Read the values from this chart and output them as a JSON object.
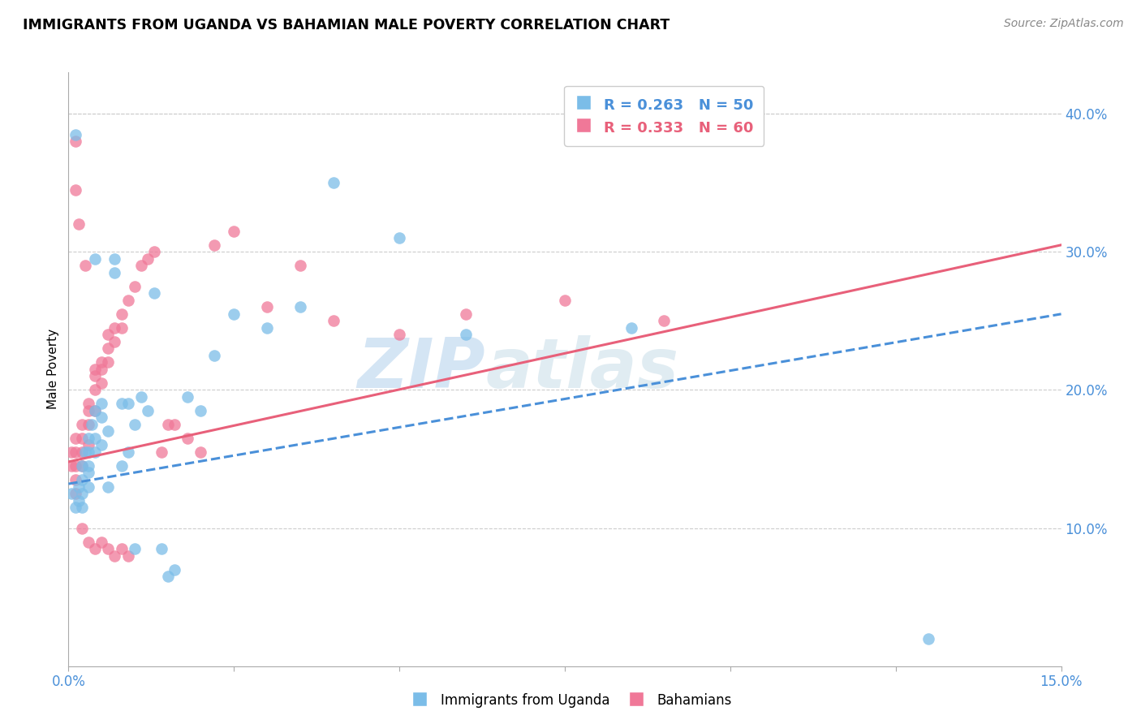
{
  "title": "IMMIGRANTS FROM UGANDA VS BAHAMIAN MALE POVERTY CORRELATION CHART",
  "source": "Source: ZipAtlas.com",
  "ylabel": "Male Poverty",
  "right_yticks": [
    "40.0%",
    "30.0%",
    "20.0%",
    "10.0%"
  ],
  "right_ytick_vals": [
    0.4,
    0.3,
    0.2,
    0.1
  ],
  "xlim": [
    0.0,
    0.15
  ],
  "ylim": [
    0.0,
    0.43
  ],
  "blue_color": "#7bbde8",
  "pink_color": "#f07898",
  "blue_line_color": "#4a90d9",
  "pink_line_color": "#e8607a",
  "watermark_zip": "ZIP",
  "watermark_atlas": "atlas",
  "blue_scatter_x": [
    0.0005,
    0.001,
    0.001,
    0.0015,
    0.0015,
    0.002,
    0.002,
    0.002,
    0.002,
    0.0025,
    0.003,
    0.003,
    0.003,
    0.003,
    0.003,
    0.0035,
    0.004,
    0.004,
    0.004,
    0.004,
    0.005,
    0.005,
    0.005,
    0.006,
    0.006,
    0.007,
    0.007,
    0.008,
    0.008,
    0.009,
    0.009,
    0.01,
    0.01,
    0.011,
    0.012,
    0.013,
    0.014,
    0.015,
    0.016,
    0.018,
    0.02,
    0.022,
    0.025,
    0.03,
    0.035,
    0.04,
    0.05,
    0.06,
    0.085,
    0.13
  ],
  "blue_scatter_y": [
    0.125,
    0.115,
    0.385,
    0.12,
    0.13,
    0.145,
    0.135,
    0.125,
    0.115,
    0.155,
    0.165,
    0.155,
    0.145,
    0.14,
    0.13,
    0.175,
    0.295,
    0.185,
    0.165,
    0.155,
    0.19,
    0.18,
    0.16,
    0.17,
    0.13,
    0.295,
    0.285,
    0.19,
    0.145,
    0.155,
    0.19,
    0.175,
    0.085,
    0.195,
    0.185,
    0.27,
    0.085,
    0.065,
    0.07,
    0.195,
    0.185,
    0.225,
    0.255,
    0.245,
    0.26,
    0.35,
    0.31,
    0.24,
    0.245,
    0.02
  ],
  "pink_scatter_x": [
    0.0005,
    0.0005,
    0.001,
    0.001,
    0.001,
    0.001,
    0.001,
    0.0015,
    0.002,
    0.002,
    0.002,
    0.002,
    0.0025,
    0.003,
    0.003,
    0.003,
    0.003,
    0.004,
    0.004,
    0.004,
    0.004,
    0.005,
    0.005,
    0.005,
    0.006,
    0.006,
    0.006,
    0.007,
    0.007,
    0.008,
    0.008,
    0.009,
    0.01,
    0.011,
    0.012,
    0.013,
    0.014,
    0.015,
    0.016,
    0.018,
    0.02,
    0.022,
    0.025,
    0.03,
    0.035,
    0.04,
    0.05,
    0.06,
    0.075,
    0.09,
    0.001,
    0.001,
    0.002,
    0.003,
    0.004,
    0.005,
    0.006,
    0.007,
    0.008,
    0.009
  ],
  "pink_scatter_y": [
    0.155,
    0.145,
    0.38,
    0.345,
    0.165,
    0.155,
    0.145,
    0.32,
    0.175,
    0.165,
    0.155,
    0.145,
    0.29,
    0.19,
    0.185,
    0.175,
    0.16,
    0.215,
    0.21,
    0.2,
    0.185,
    0.22,
    0.215,
    0.205,
    0.24,
    0.23,
    0.22,
    0.245,
    0.235,
    0.255,
    0.245,
    0.265,
    0.275,
    0.29,
    0.295,
    0.3,
    0.155,
    0.175,
    0.175,
    0.165,
    0.155,
    0.305,
    0.315,
    0.26,
    0.29,
    0.25,
    0.24,
    0.255,
    0.265,
    0.25,
    0.125,
    0.135,
    0.1,
    0.09,
    0.085,
    0.09,
    0.085,
    0.08,
    0.085,
    0.08
  ],
  "blue_line_x": [
    0.0,
    0.15
  ],
  "blue_line_y": [
    0.132,
    0.255
  ],
  "pink_line_x": [
    0.0,
    0.15
  ],
  "pink_line_y": [
    0.148,
    0.305
  ]
}
